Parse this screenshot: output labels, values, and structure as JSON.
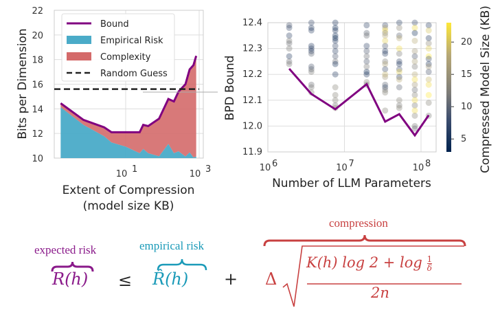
{
  "chart_data": [
    {
      "type": "area",
      "xlabel": "Extent of Compression",
      "xlabel2": "(model size KB)",
      "ylabel": "Bits per Dimension",
      "xscale": "log",
      "ylim": [
        10,
        22
      ],
      "yticks": [
        "10",
        "12",
        "14",
        "16",
        "18",
        "20",
        "22"
      ],
      "xticks": [
        {
          "base": "10",
          "exp": "1",
          "value": 10
        },
        {
          "base": "10",
          "exp": "3",
          "value": 1000
        }
      ],
      "grid": true,
      "legend_placement": "top-left",
      "legend": [
        "Bound",
        "Empirical Risk",
        "Complexity",
        "Random Guess"
      ],
      "x": [
        0.17,
        0.71,
        2.6,
        4.1,
        10,
        24,
        30,
        41,
        81,
        145,
        205,
        275,
        423,
        550,
        700,
        830
      ],
      "bound": [
        14.45,
        13.1,
        12.5,
        12.1,
        12.1,
        12.1,
        12.7,
        12.6,
        13.2,
        14.8,
        14.6,
        15.4,
        16.0,
        17.2,
        17.55,
        18.3
      ],
      "empirical_risk": [
        14.13,
        12.7,
        11.77,
        11.27,
        10.93,
        10.4,
        10.74,
        10.4,
        10.15,
        11.15,
        10.4,
        10.55,
        10.13,
        10.46,
        10.04,
        10.13
      ],
      "random_guess": 15.6,
      "colors": {
        "bound": "#800080",
        "empirical": "#4aabc8",
        "complexity": "#d46a6a",
        "random": "#222222"
      }
    },
    {
      "type": "scatter",
      "xlabel": "Number of LLM Parameters",
      "ylabel": "BPD Bound",
      "xscale": "log",
      "xlim": [
        1000000,
        160000000
      ],
      "ylim": [
        11.9,
        12.4
      ],
      "yticks": [
        "11.9",
        "12.0",
        "12.1",
        "12.2",
        "12.3",
        "12.4"
      ],
      "xticks": [
        {
          "base": "10",
          "exp": "6",
          "value": 1000000
        },
        {
          "base": "10",
          "exp": "7",
          "value": 10000000
        },
        {
          "base": "10",
          "exp": "8",
          "value": 100000000
        }
      ],
      "grid": true,
      "colorbar": {
        "label": "Compressed Model Size (KB)",
        "colormap": "cividis",
        "range": [
          3,
          23
        ],
        "ticks": [
          "5",
          "10",
          "15",
          "20"
        ]
      },
      "line": {
        "color": "#800080",
        "x": [
          1900000,
          3700000,
          7600000,
          19500000,
          34000000,
          52000000,
          83000000,
          126000000
        ],
        "y": [
          12.222,
          12.124,
          12.065,
          12.162,
          12.017,
          12.046,
          11.964,
          12.042
        ]
      },
      "columns": [
        {
          "x": 1900000,
          "y": [
            12.39,
            12.38,
            12.35,
            12.33,
            12.32,
            12.3,
            12.27,
            12.25,
            12.24
          ],
          "size": [
            9,
            8,
            7,
            12,
            11,
            12,
            6,
            11,
            12
          ]
        },
        {
          "x": 3700000,
          "y": [
            12.4,
            12.38,
            12.37,
            12.31,
            12.3,
            12.29,
            12.28,
            12.23,
            12.22,
            12.21,
            12.16,
            12.15,
            12.13
          ],
          "size": [
            8,
            6,
            7,
            6,
            7,
            6,
            10,
            9,
            10,
            12,
            11,
            12,
            13
          ]
        },
        {
          "x": 7600000,
          "y": [
            12.4,
            12.38,
            12.37,
            12.35,
            12.34,
            12.33,
            12.31,
            12.29,
            12.27,
            12.25,
            12.24,
            12.2,
            12.15,
            12.12,
            12.1,
            12.08,
            12.07
          ],
          "size": [
            6,
            5,
            6,
            5,
            4,
            6,
            8,
            7,
            9,
            11,
            5,
            6,
            13,
            13,
            13,
            12,
            14
          ]
        },
        {
          "x": 19500000,
          "y": [
            12.39,
            12.36,
            12.35,
            12.31,
            12.29,
            12.27,
            12.25,
            12.23,
            12.21,
            12.2,
            12.17,
            12.16
          ],
          "size": [
            7,
            10,
            11,
            7,
            9,
            11,
            9,
            12,
            5,
            6,
            13,
            12
          ]
        },
        {
          "x": 34000000,
          "y": [
            12.39,
            12.38,
            12.37,
            12.36,
            12.35,
            12.33,
            12.31,
            12.29,
            12.28,
            12.25,
            12.24,
            12.22,
            12.2,
            12.19,
            12.16,
            12.15,
            12.14,
            12.13,
            12.06
          ],
          "size": [
            8,
            17,
            22,
            13,
            18,
            21,
            9,
            6,
            7,
            12,
            17,
            8,
            19,
            16,
            10,
            7,
            12,
            13,
            13
          ]
        },
        {
          "x": 52000000,
          "y": [
            12.4,
            12.38,
            12.35,
            12.34,
            12.3,
            12.28,
            12.25,
            12.24,
            12.22,
            12.21,
            12.19,
            12.18,
            12.15,
            12.1,
            12.08,
            12.07
          ],
          "size": [
            7,
            14,
            10,
            18,
            22,
            12,
            8,
            6,
            9,
            21,
            7,
            18,
            10,
            13,
            12,
            13
          ]
        },
        {
          "x": 83000000,
          "y": [
            12.4,
            12.38,
            12.36,
            12.33,
            12.29,
            12.27,
            12.25,
            12.23,
            12.2,
            12.18,
            12.16,
            12.14,
            12.12,
            12.1,
            12.08,
            12.06,
            12.04,
            12.0,
            11.99
          ],
          "size": [
            8,
            22,
            5,
            18,
            16,
            9,
            17,
            12,
            18,
            22,
            16,
            11,
            13,
            22,
            12,
            22,
            13,
            12,
            11
          ]
        },
        {
          "x": 126000000,
          "y": [
            12.39,
            12.37,
            12.34,
            12.32,
            12.3,
            12.27,
            12.26,
            12.24,
            12.23,
            12.21,
            12.18,
            12.16,
            12.12,
            12.09,
            12.04
          ],
          "size": [
            7,
            20,
            6,
            14,
            21,
            23,
            8,
            6,
            16,
            9,
            19,
            22,
            23,
            13,
            12
          ]
        }
      ]
    }
  ],
  "formula": {
    "expected_risk_label": "expected risk",
    "empirical_risk_label": "empirical risk",
    "compression_label": "compression",
    "lhs": "R(h)",
    "leq": "≤",
    "rhat": "R̂(h)",
    "plus": "+",
    "delta": "Δ",
    "numerator": "K(h) log 2 + log",
    "frac_num": "1",
    "frac_den": "δ",
    "denominator": "2n",
    "colors": {
      "expected": "#8a1a8a",
      "empirical": "#1a9ab8",
      "compression": "#c84040"
    }
  }
}
